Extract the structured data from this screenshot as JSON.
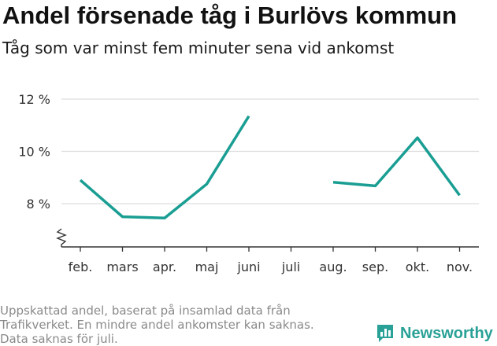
{
  "header": {
    "title": "Andel försenade tåg i Burlövs kommun",
    "subtitle": "Tåg som var minst fem minuter sena vid ankomst"
  },
  "footnote": {
    "lines": [
      "Uppskattad andel, baserat på insamlad data från",
      "Trafikverket. En mindre andel ankomster kan saknas.",
      "Data saknas för juli."
    ]
  },
  "brand": {
    "name": "Newsworthy",
    "color": "#2aa196",
    "icon": "newsworthy-logo-icon"
  },
  "chart_data": {
    "type": "line",
    "categories": [
      "feb.",
      "mars",
      "apr.",
      "maj",
      "juni",
      "juli",
      "aug.",
      "sep.",
      "okt.",
      "nov."
    ],
    "series": [
      {
        "values": [
          8.9,
          7.5,
          7.45,
          8.75,
          11.35,
          null,
          8.82,
          8.68,
          10.52,
          8.32
        ]
      }
    ],
    "y_ticks": [
      8,
      10,
      12
    ],
    "y_tick_labels": [
      "8 %",
      "10 %",
      "12 %"
    ],
    "ylim": [
      6.4,
      12.4
    ],
    "y_axis_break": true,
    "grid": true,
    "line_color": "#1a9e93",
    "xlabel": "",
    "ylabel": ""
  }
}
